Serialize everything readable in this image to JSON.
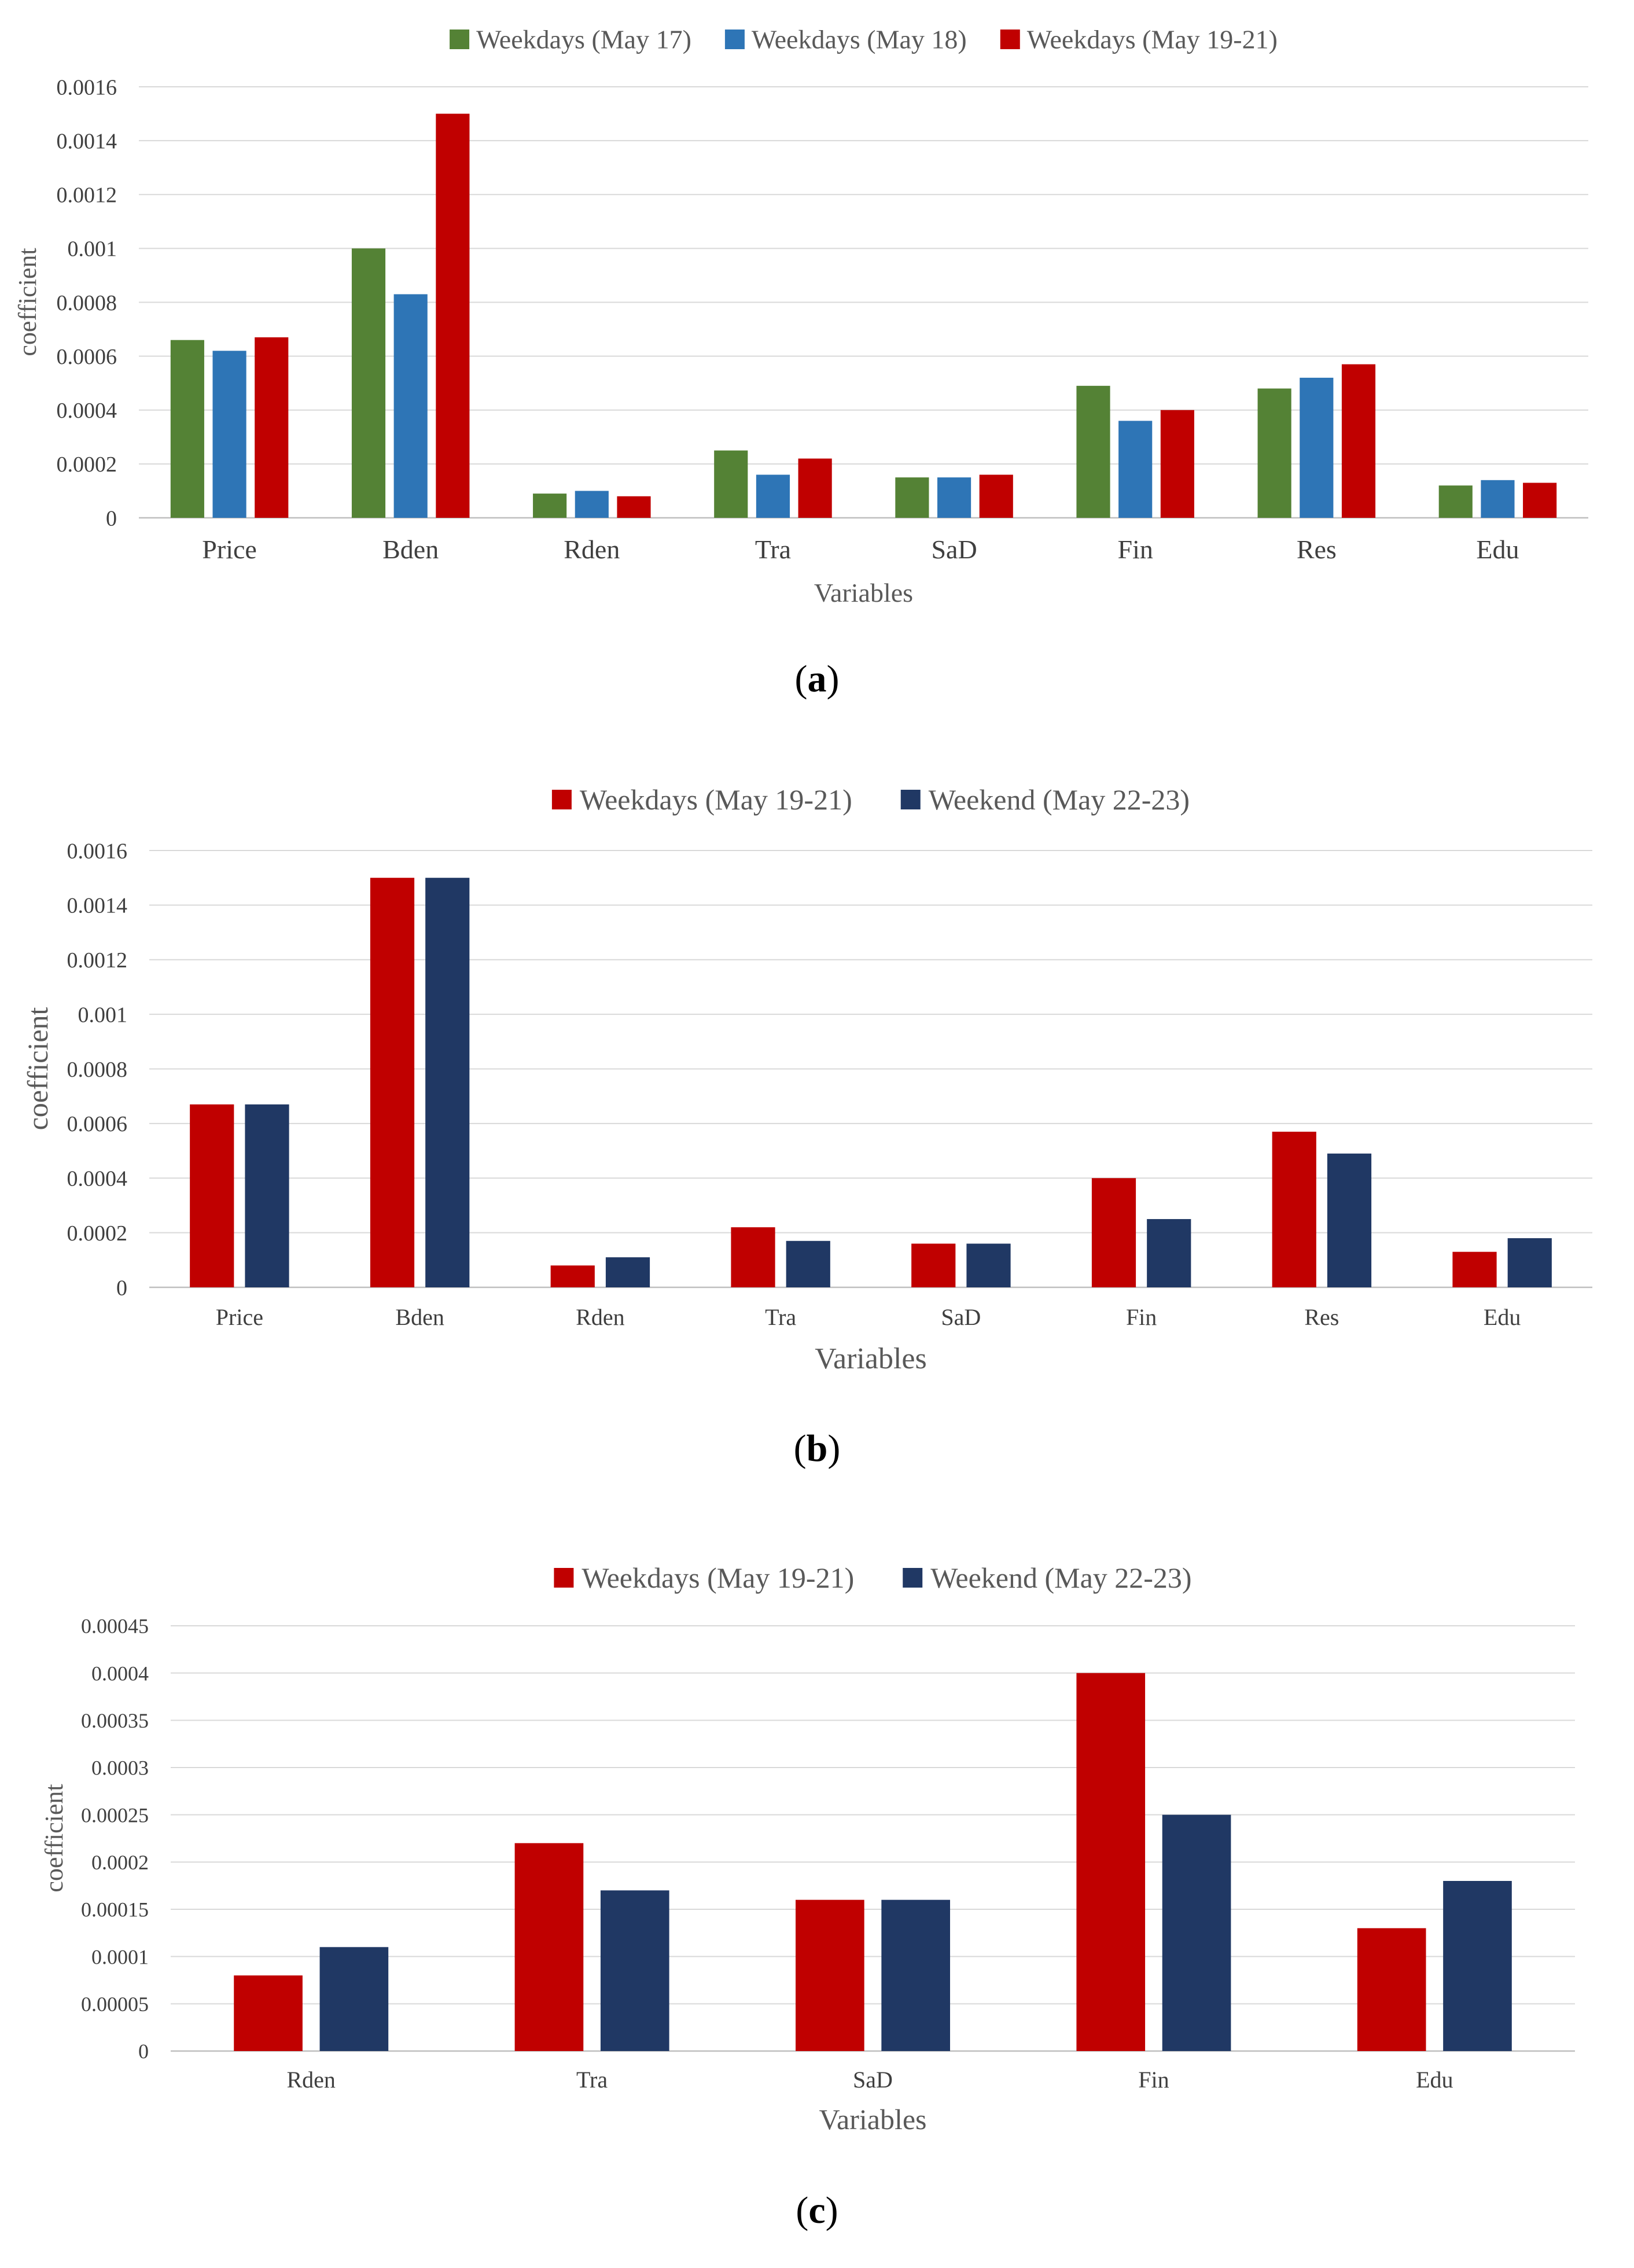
{
  "chart_data": [
    {
      "type": "bar",
      "panel_label": "a",
      "xlabel": "Variables",
      "ylabel": "coefficient",
      "ylim": [
        0,
        0.0016
      ],
      "ytick_labels": [
        "0",
        "0.0002",
        "0.0004",
        "0.0006",
        "0.0008",
        "0.001",
        "0.0012",
        "0.0014",
        "0.0016"
      ],
      "categories": [
        "Price",
        "Bden",
        "Rden",
        "Tra",
        "SaD",
        "Fin",
        "Res",
        "Edu"
      ],
      "legend_position": "top-center",
      "grid": true,
      "series": [
        {
          "name": "Weekdays (May 17)",
          "color": "#548235",
          "values": [
            0.00066,
            0.001,
            9e-05,
            0.00025,
            0.00015,
            0.00049,
            0.00048,
            0.00012
          ]
        },
        {
          "name": "Weekdays (May 18)",
          "color": "#2e75b6",
          "values": [
            0.00062,
            0.00083,
            0.0001,
            0.00016,
            0.00015,
            0.00036,
            0.00052,
            0.00014
          ]
        },
        {
          "name": "Weekdays (May 19-21)",
          "color": "#c00000",
          "values": [
            0.00067,
            0.0015,
            8e-05,
            0.00022,
            0.00016,
            0.0004,
            0.00057,
            0.00013
          ]
        }
      ]
    },
    {
      "type": "bar",
      "panel_label": "b",
      "xlabel": "Variables",
      "ylabel": "coefficient",
      "ylim": [
        0,
        0.0016
      ],
      "ytick_labels": [
        "0",
        "0.0002",
        "0.0004",
        "0.0006",
        "0.0008",
        "0.001",
        "0.0012",
        "0.0014",
        "0.0016"
      ],
      "categories": [
        "Price",
        "Bden",
        "Rden",
        "Tra",
        "SaD",
        "Fin",
        "Res",
        "Edu"
      ],
      "legend_position": "top-center",
      "grid": true,
      "series": [
        {
          "name": "Weekdays (May 19-21)",
          "color": "#c00000",
          "values": [
            0.00067,
            0.0015,
            8e-05,
            0.00022,
            0.00016,
            0.0004,
            0.00057,
            0.00013
          ]
        },
        {
          "name": "Weekend (May 22-23)",
          "color": "#203864",
          "values": [
            0.00067,
            0.0015,
            0.00011,
            0.00017,
            0.00016,
            0.00025,
            0.00049,
            0.00018
          ]
        }
      ]
    },
    {
      "type": "bar",
      "panel_label": "c",
      "xlabel": "Variables",
      "ylabel": "coefficient",
      "ylim": [
        0,
        0.00045
      ],
      "ytick_labels": [
        "0",
        "0.00005",
        "0.0001",
        "0.00015",
        "0.0002",
        "0.00025",
        "0.0003",
        "0.00035",
        "0.0004",
        "0.00045"
      ],
      "categories": [
        "Rden",
        "Tra",
        "SaD",
        "Fin",
        "Edu"
      ],
      "legend_position": "top-center",
      "grid": true,
      "series": [
        {
          "name": "Weekdays (May 19-21)",
          "color": "#c00000",
          "values": [
            8e-05,
            0.00022,
            0.00016,
            0.0004,
            0.00013
          ]
        },
        {
          "name": "Weekend (May 22-23)",
          "color": "#203864",
          "values": [
            0.00011,
            0.00017,
            0.00016,
            0.00025,
            0.00018
          ]
        }
      ]
    }
  ]
}
